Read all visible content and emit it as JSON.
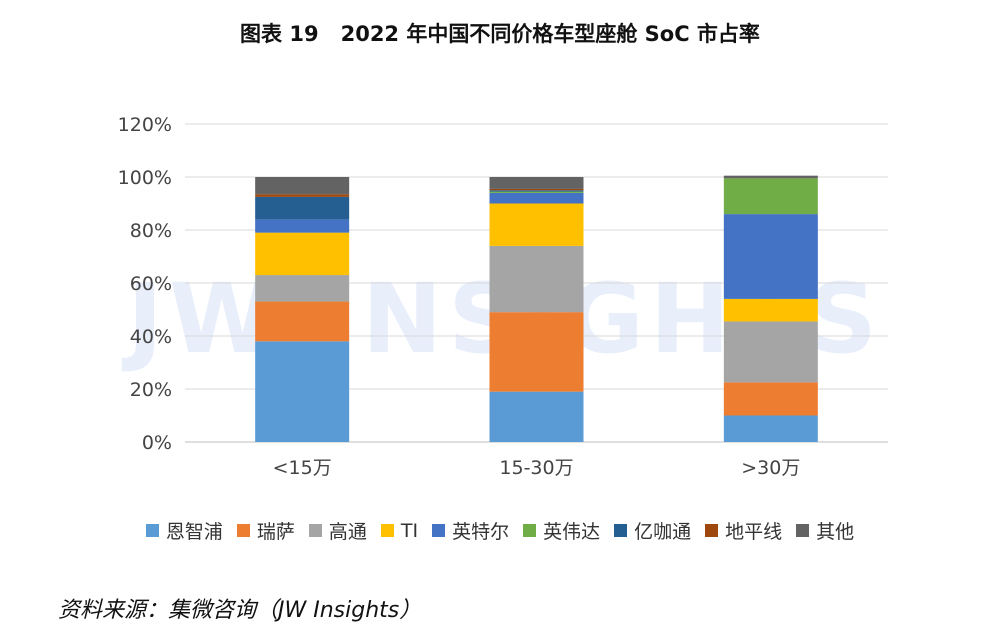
{
  "title": {
    "prefix": "图表 19",
    "text": "2022 年中国不同价格车型座舱 SoC 市占率"
  },
  "watermark": "JW INSIGHTS",
  "source": "资料来源：集微咨询（JW Insights）",
  "chart_data": {
    "type": "bar",
    "stacked": true,
    "title": "2022 年中国不同价格车型座舱 SoC 市占率",
    "categories": [
      "<15万",
      "15-30万",
      ">30万"
    ],
    "ylim": [
      0,
      120
    ],
    "yticks": [
      "0%",
      "20%",
      "40%",
      "60%",
      "80%",
      "100%",
      "120%"
    ],
    "grid": true,
    "legend_position": "bottom",
    "series": [
      {
        "name": "恩智浦",
        "color": "#5B9BD5",
        "values": [
          38,
          19,
          10
        ]
      },
      {
        "name": "瑞萨",
        "color": "#ED7D31",
        "values": [
          15,
          30,
          12.5
        ]
      },
      {
        "name": "高通",
        "color": "#A5A5A5",
        "values": [
          10,
          25,
          23
        ]
      },
      {
        "name": "TI",
        "color": "#FFC000",
        "values": [
          16,
          16,
          8.5
        ]
      },
      {
        "name": "英特尔",
        "color": "#4472C4",
        "values": [
          5,
          4,
          32
        ]
      },
      {
        "name": "英伟达",
        "color": "#70AD47",
        "values": [
          0,
          0.5,
          13.5
        ]
      },
      {
        "name": "亿咖通",
        "color": "#255E91",
        "values": [
          8.5,
          0.5,
          0
        ]
      },
      {
        "name": "地平线",
        "color": "#9E480E",
        "values": [
          1,
          0.5,
          0
        ]
      },
      {
        "name": "其他",
        "color": "#636363",
        "values": [
          6.5,
          4.5,
          1
        ]
      }
    ]
  }
}
